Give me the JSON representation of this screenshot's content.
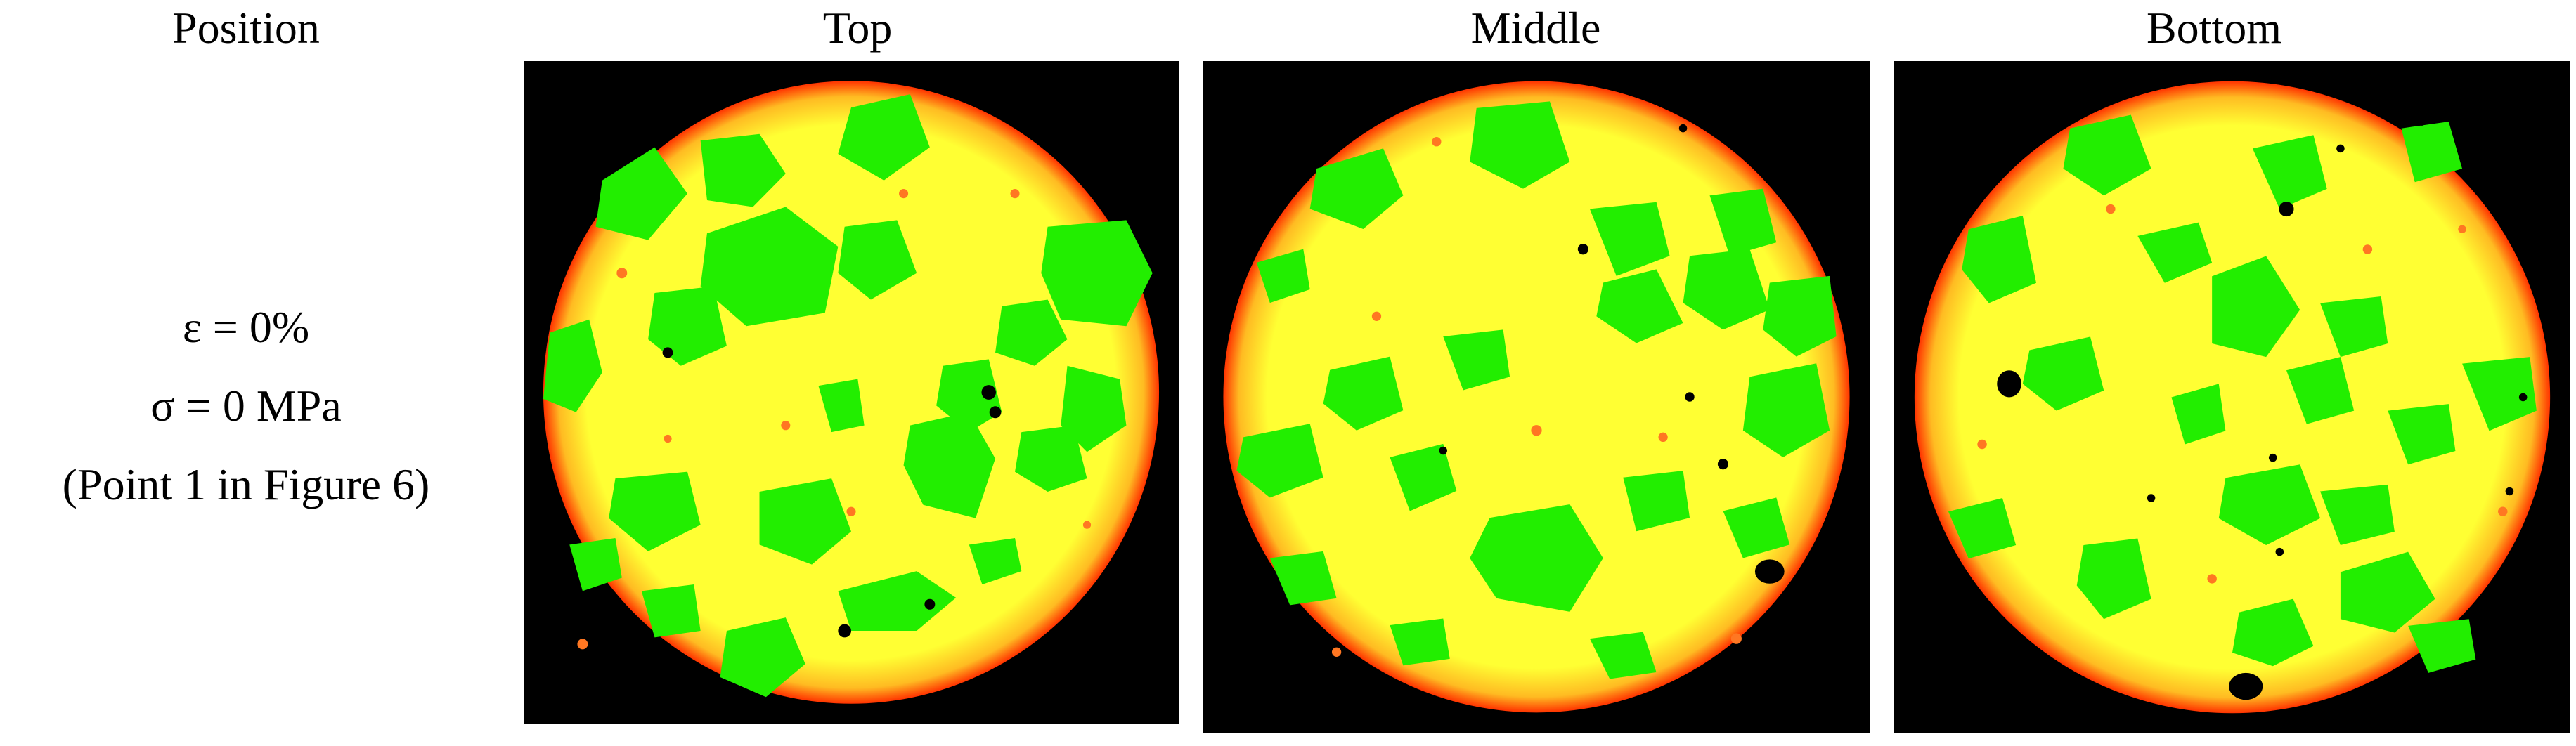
{
  "headers": {
    "position": "Position",
    "top": "Top",
    "middle": "Middle",
    "bottom": "Bottom"
  },
  "conditions": {
    "strain": "ε   =   0%",
    "stress": "σ = 0 MPa",
    "reference": "(Point 1 in Figure 6)"
  },
  "colors": {
    "background": "#000000",
    "matrix": "#ffff33",
    "aggregate": "#22ee00",
    "edge": "#ff3300",
    "pore": "#000000"
  }
}
